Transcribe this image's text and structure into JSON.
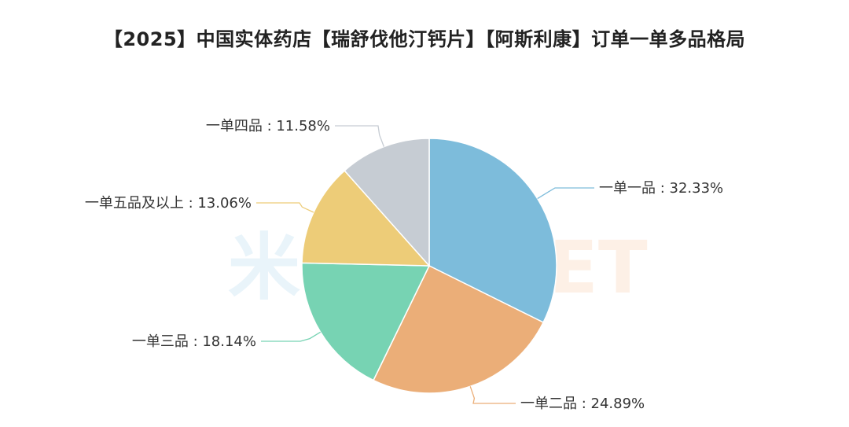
{
  "chart_data": {
    "type": "pie",
    "title": "【2025】中国实体药店【瑞舒伐他汀钙片】【阿斯利康】订单一单多品格局",
    "slices": [
      {
        "label": "一单一品",
        "value": 32.33,
        "display": "一单一品 : 32.33%",
        "color": "#7dbcdb"
      },
      {
        "label": "一单二品",
        "value": 24.89,
        "display": "一单二品 : 24.89%",
        "color": "#ebae78"
      },
      {
        "label": "一单三品",
        "value": 18.14,
        "display": "一单三品 : 18.14%",
        "color": "#77d3b3"
      },
      {
        "label": "一单五品及以上",
        "value": 13.06,
        "display": "一单五品及以上 : 13.06%",
        "color": "#edcc78"
      },
      {
        "label": "一单四品",
        "value": 11.58,
        "display": "一单四品 : 11.58%",
        "color": "#c6ccd3"
      }
    ],
    "start_angle": "12 o'clock",
    "direction": "clockwise",
    "legend": "none"
  }
}
